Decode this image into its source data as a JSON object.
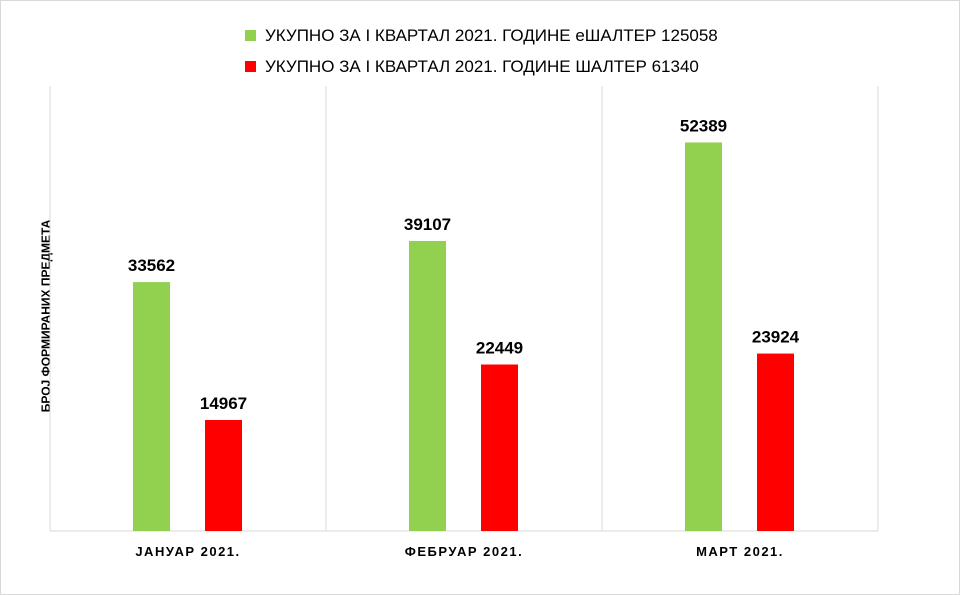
{
  "chart_data": {
    "type": "bar",
    "categories": [
      "ЈАНУАР 2021.",
      "ФЕБРУАР 2021.",
      "МАРТ 2021."
    ],
    "series": [
      {
        "name": "УКУПНО ЗА I КВАРТАЛ 2021. ГОДИНЕ еШАЛТЕР 125058",
        "color": "#92d050",
        "values": [
          33562,
          39107,
          52389
        ]
      },
      {
        "name": "УКУПНО ЗА I КВАРТАЛ 2021. ГОДИНЕ ШАЛТЕР 61340",
        "color": "#ff0000",
        "values": [
          14967,
          22449,
          23924
        ]
      }
    ],
    "title": "",
    "xlabel": "",
    "ylabel": "БРОЈ ФОРМИРАНИХ ПРЕДМЕТА",
    "ylim": [
      0,
      60000
    ],
    "grid": "vertical category separators",
    "legend": "top-center"
  }
}
